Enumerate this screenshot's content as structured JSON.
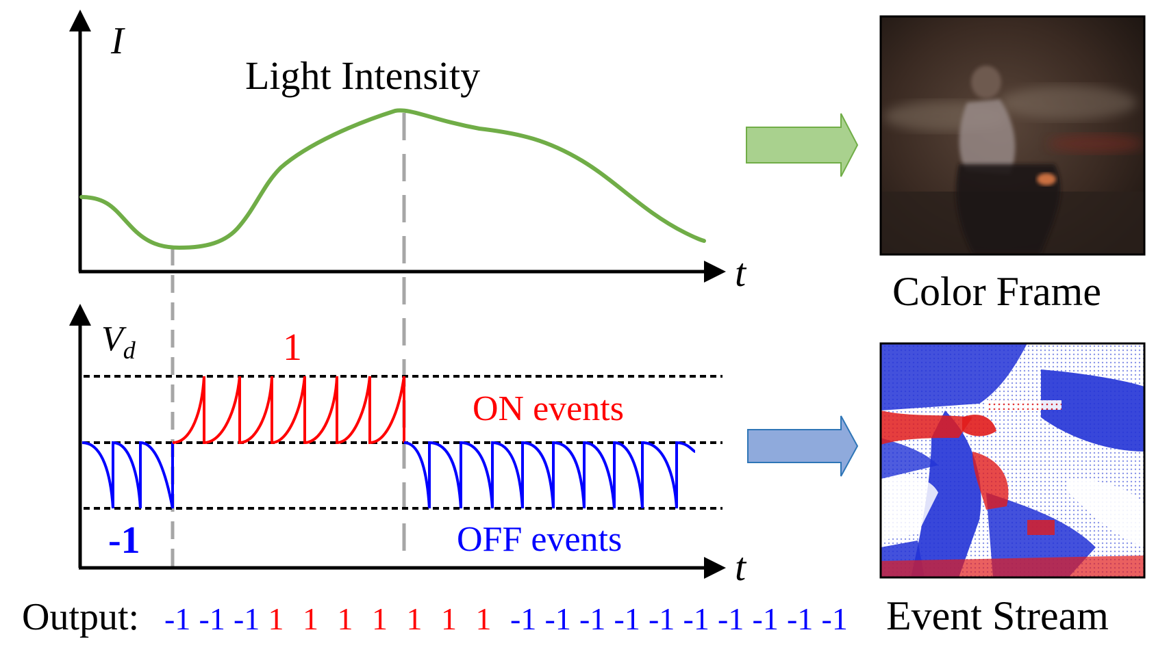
{
  "labels": {
    "intensity_axis": "I",
    "intensity_title": "Light Intensity",
    "time_axis_top": "t",
    "voltage_axis_main": "V",
    "voltage_axis_sub": "d",
    "time_axis_bottom": "t",
    "on_polarity": "1",
    "off_polarity": "-1",
    "on_events": "ON events",
    "off_events": "OFF events",
    "color_frame": "Color Frame",
    "event_stream": "Event Stream",
    "output_prefix": "Output:"
  },
  "output_sequence": [
    -1,
    -1,
    -1,
    1,
    1,
    1,
    1,
    1,
    1,
    1,
    -1,
    -1,
    -1,
    -1,
    -1,
    -1,
    -1,
    -1,
    -1,
    -1
  ],
  "colors": {
    "intensity_curve": "#70ad47",
    "on_event": "#ff0000",
    "off_event": "#0000ff",
    "axis": "#000000",
    "guide_line": "#a6a6a6",
    "arrow_top_fill": "#a9d18e",
    "arrow_top_stroke": "#70ad47",
    "arrow_bottom_fill": "#8faadc",
    "arrow_bottom_stroke": "#2e75b6"
  },
  "images": {
    "color_frame": "blurry-night-motorcyclist-photo",
    "event_stream": "red-blue-event-pixel-map"
  }
}
